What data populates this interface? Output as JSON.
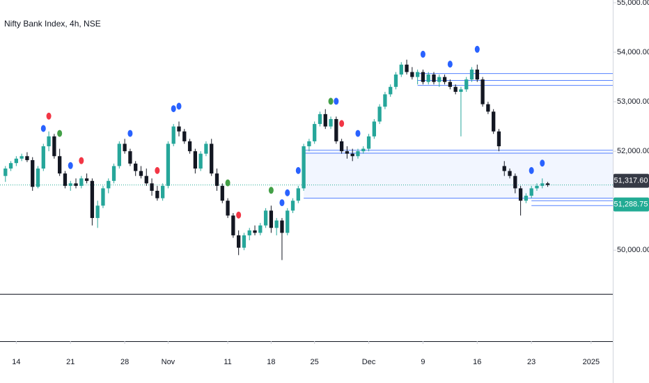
{
  "chart_data": {
    "type": "candlestick",
    "title": "Nifty Bank Index, 4h, NSE",
    "up_color": "#26a69a",
    "down_color": "#131722",
    "ylim": [
      49117,
      55056
    ],
    "yticks": [
      {
        "value": 55000,
        "label": "55,000.00"
      },
      {
        "value": 54000,
        "label": "54,000.00"
      },
      {
        "value": 53000,
        "label": "53,000.00"
      },
      {
        "value": 52000,
        "label": "52,000.00"
      },
      {
        "value": 50000,
        "label": "50,000.00"
      }
    ],
    "xlim": [
      -1,
      112
    ],
    "xticks": [
      {
        "value": 2,
        "label": "14"
      },
      {
        "value": 12,
        "label": "21"
      },
      {
        "value": 22,
        "label": "28"
      },
      {
        "value": 30,
        "label": "Nov"
      },
      {
        "value": 41,
        "label": "11"
      },
      {
        "value": 49,
        "label": "18"
      },
      {
        "value": 57,
        "label": "25"
      },
      {
        "value": 67,
        "label": "Dec"
      },
      {
        "value": 77,
        "label": "9"
      },
      {
        "value": 87,
        "label": "16"
      },
      {
        "value": 97,
        "label": "23"
      },
      {
        "value": 108,
        "label": "2025"
      }
    ],
    "candles": [
      [
        51500,
        51700,
        51380,
        51650
      ],
      [
        51650,
        51800,
        51600,
        51760
      ],
      [
        51760,
        51900,
        51700,
        51850
      ],
      [
        51850,
        51950,
        51800,
        51900
      ],
      [
        51900,
        51980,
        51780,
        51820
      ],
      [
        51820,
        51880,
        51200,
        51280
      ],
      [
        51280,
        51700,
        51250,
        51650
      ],
      [
        51650,
        52150,
        51600,
        52100
      ],
      [
        52100,
        52400,
        52000,
        52300
      ],
      [
        52300,
        52350,
        51850,
        51900
      ],
      [
        51900,
        52050,
        51500,
        51550
      ],
      [
        51550,
        51600,
        51250,
        51300
      ],
      [
        51300,
        51400,
        51200,
        51350
      ],
      [
        51350,
        51450,
        51250,
        51300
      ],
      [
        51300,
        51500,
        51250,
        51450
      ],
      [
        51450,
        51550,
        51350,
        51400
      ],
      [
        51400,
        51450,
        50500,
        50650
      ],
      [
        50650,
        51000,
        50450,
        50900
      ],
      [
        50900,
        51300,
        50850,
        51250
      ],
      [
        51250,
        51450,
        51150,
        51400
      ],
      [
        51400,
        51750,
        51350,
        51700
      ],
      [
        51700,
        52200,
        51650,
        52150
      ],
      [
        52150,
        52250,
        51950,
        52000
      ],
      [
        52000,
        52050,
        51700,
        51750
      ],
      [
        51750,
        51800,
        51500,
        51600
      ],
      [
        51600,
        51700,
        51450,
        51500
      ],
      [
        51500,
        51650,
        51300,
        51350
      ],
      [
        51350,
        51450,
        51100,
        51200
      ],
      [
        51200,
        51300,
        51000,
        51050
      ],
      [
        51050,
        51350,
        51000,
        51300
      ],
      [
        51300,
        52200,
        51250,
        52150
      ],
      [
        52150,
        52550,
        52100,
        52500
      ],
      [
        52500,
        52600,
        52300,
        52400
      ],
      [
        52400,
        52450,
        52150,
        52200
      ],
      [
        52200,
        52250,
        51950,
        52000
      ],
      [
        52000,
        52050,
        51550,
        51650
      ],
      [
        51650,
        52000,
        51600,
        51950
      ],
      [
        51950,
        52200,
        51900,
        52150
      ],
      [
        52150,
        52250,
        51500,
        51550
      ],
      [
        51550,
        51650,
        51200,
        51300
      ],
      [
        51300,
        51350,
        50950,
        51000
      ],
      [
        51000,
        51050,
        50650,
        50700
      ],
      [
        50700,
        50750,
        50250,
        50300
      ],
      [
        50300,
        50400,
        49900,
        50050
      ],
      [
        50050,
        50350,
        50000,
        50300
      ],
      [
        50300,
        50450,
        50200,
        50400
      ],
      [
        50400,
        50500,
        50300,
        50350
      ],
      [
        50350,
        50550,
        50300,
        50500
      ],
      [
        50500,
        50850,
        50450,
        50800
      ],
      [
        50800,
        50900,
        50350,
        50450
      ],
      [
        50450,
        50650,
        50300,
        50600
      ],
      [
        50600,
        50650,
        49800,
        50350
      ],
      [
        50350,
        50850,
        50300,
        50800
      ],
      [
        50800,
        51050,
        50750,
        51000
      ],
      [
        51000,
        51300,
        50950,
        51250
      ],
      [
        51250,
        52150,
        51200,
        52100
      ],
      [
        52100,
        52250,
        52000,
        52200
      ],
      [
        52200,
        52600,
        52150,
        52550
      ],
      [
        52550,
        52800,
        52500,
        52750
      ],
      [
        52750,
        52850,
        52450,
        52500
      ],
      [
        52500,
        52700,
        52450,
        52650
      ],
      [
        52650,
        52700,
        52150,
        52200
      ],
      [
        52200,
        52250,
        51950,
        52000
      ],
      [
        52000,
        52100,
        51850,
        51950
      ],
      [
        51950,
        52050,
        51800,
        51900
      ],
      [
        51900,
        52050,
        51850,
        52000
      ],
      [
        52000,
        52100,
        51950,
        52050
      ],
      [
        52050,
        52350,
        52000,
        52300
      ],
      [
        52300,
        52650,
        52250,
        52600
      ],
      [
        52600,
        52950,
        52550,
        52900
      ],
      [
        52900,
        53200,
        52850,
        53150
      ],
      [
        53150,
        53350,
        53100,
        53300
      ],
      [
        53300,
        53600,
        53250,
        53550
      ],
      [
        53550,
        53800,
        53500,
        53750
      ],
      [
        53750,
        53850,
        53550,
        53600
      ],
      [
        53600,
        53700,
        53450,
        53500
      ],
      [
        53500,
        53650,
        53350,
        53600
      ],
      [
        53600,
        53650,
        53350,
        53400
      ],
      [
        53400,
        53600,
        53350,
        53550
      ],
      [
        53550,
        53600,
        53350,
        53400
      ],
      [
        53400,
        53550,
        53300,
        53500
      ],
      [
        53500,
        53550,
        53350,
        53400
      ],
      [
        53400,
        53450,
        53250,
        53300
      ],
      [
        53300,
        53350,
        53150,
        53200
      ],
      [
        53200,
        53300,
        52300,
        53250
      ],
      [
        53250,
        53500,
        53200,
        53450
      ],
      [
        53450,
        53700,
        53400,
        53650
      ],
      [
        53650,
        53750,
        53400,
        53450
      ],
      [
        53450,
        53500,
        52900,
        52950
      ],
      [
        52950,
        53000,
        52750,
        52800
      ],
      [
        52800,
        52850,
        52350,
        52400
      ],
      [
        52400,
        52450,
        52000,
        52100
      ],
      [
        51700,
        51800,
        51500,
        51600
      ],
      [
        51600,
        51650,
        51450,
        51500
      ],
      [
        51500,
        51550,
        51150,
        51250
      ],
      [
        51250,
        51300,
        50700,
        51000
      ],
      [
        51000,
        51150,
        50950,
        51100
      ],
      [
        51100,
        51300,
        51050,
        51250
      ],
      [
        51250,
        51350,
        51200,
        51300
      ],
      [
        51300,
        51450,
        51250,
        51350
      ],
      [
        51350,
        51380,
        51280,
        51317.6
      ]
    ],
    "markers": [
      {
        "x": 7,
        "color": "#2962ff"
      },
      {
        "x": 8,
        "color": "#f23645"
      },
      {
        "x": 10,
        "color": "#43a047"
      },
      {
        "x": 12,
        "color": "#2962ff"
      },
      {
        "x": 14,
        "color": "#f23645"
      },
      {
        "x": 23,
        "color": "#2962ff"
      },
      {
        "x": 28,
        "color": "#f23645"
      },
      {
        "x": 31,
        "color": "#2962ff"
      },
      {
        "x": 32,
        "color": "#2962ff"
      },
      {
        "x": 41,
        "color": "#43a047"
      },
      {
        "x": 43,
        "color": "#f23645"
      },
      {
        "x": 49,
        "color": "#43a047"
      },
      {
        "x": 51,
        "color": "#2962ff"
      },
      {
        "x": 52,
        "color": "#2962ff"
      },
      {
        "x": 54,
        "color": "#2962ff"
      },
      {
        "x": 60,
        "color": "#43a047"
      },
      {
        "x": 61,
        "color": "#2962ff"
      },
      {
        "x": 62,
        "color": "#f23645"
      },
      {
        "x": 65,
        "color": "#2962ff"
      },
      {
        "x": 77,
        "color": "#2962ff"
      },
      {
        "x": 82,
        "color": "#2962ff"
      },
      {
        "x": 87,
        "color": "#2962ff"
      },
      {
        "x": 97,
        "color": "#2962ff"
      },
      {
        "x": 99,
        "color": "#2962ff"
      }
    ],
    "levels": [
      {
        "value": 53570,
        "from": 76
      },
      {
        "value": 53430,
        "from": 76
      },
      {
        "value": 53330,
        "from": 76
      },
      {
        "value": 52020,
        "from": 55
      },
      {
        "value": 51960,
        "from": 55
      },
      {
        "value": 51050,
        "from": 55
      },
      {
        "value": 51000,
        "from": 97
      },
      {
        "value": 50900,
        "from": 97
      }
    ],
    "zone": {
      "from": 55,
      "top": 52000,
      "bottom": 51050,
      "color": "#2962ff"
    },
    "price_labels": [
      {
        "value": 51317.6,
        "label": "51,317.60",
        "color": "#363a45"
      },
      {
        "value": 51288.75,
        "label": "51,288.75",
        "color": "#22ab94"
      }
    ]
  }
}
